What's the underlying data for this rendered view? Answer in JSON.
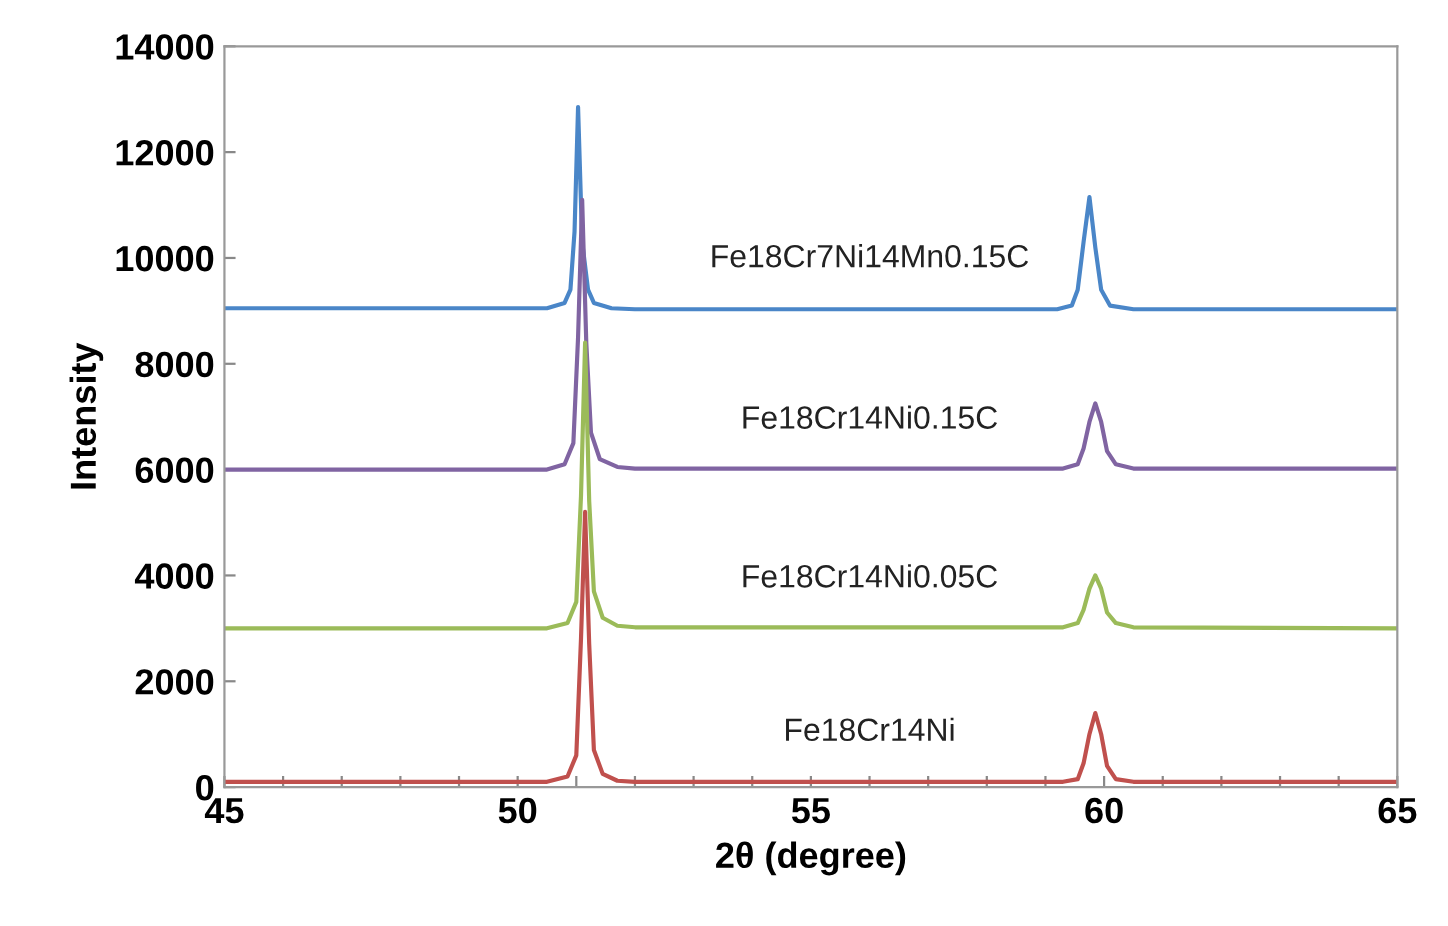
{
  "chart_data": {
    "type": "line",
    "xlabel": "2θ (degree)",
    "ylabel": "Intensity",
    "xlim": [
      45,
      65
    ],
    "ylim": [
      0,
      14000
    ],
    "xticks": [
      45,
      {
        "value": 46,
        "label": null
      },
      {
        "value": 47,
        "label": null
      },
      {
        "value": 48,
        "label": null
      },
      {
        "value": 49,
        "label": null
      },
      50,
      {
        "value": 51,
        "label": null
      },
      {
        "value": 52,
        "label": null
      },
      {
        "value": 53,
        "label": null
      },
      {
        "value": 54,
        "label": null
      },
      55,
      {
        "value": 56,
        "label": null
      },
      {
        "value": 57,
        "label": null
      },
      {
        "value": 58,
        "label": null
      },
      {
        "value": 59,
        "label": null
      },
      60,
      {
        "value": 61,
        "label": null
      },
      {
        "value": 62,
        "label": null
      },
      {
        "value": 63,
        "label": null
      },
      {
        "value": 64,
        "label": null
      },
      65
    ],
    "yticks": [
      0,
      2000,
      4000,
      6000,
      8000,
      10000,
      12000,
      14000
    ],
    "grid": false,
    "legend": false,
    "marker": "none",
    "line_style": "solid",
    "series": [
      {
        "name": "Fe18Cr7Ni14Mn0.15C",
        "color": "#4a86c8",
        "x": [
          45,
          50.5,
          50.8,
          50.9,
          50.97,
          51.03,
          51.1,
          51.2,
          51.3,
          51.6,
          52,
          59.2,
          59.45,
          59.55,
          59.65,
          59.75,
          59.85,
          59.95,
          60.1,
          60.5,
          65
        ],
        "values": [
          9050,
          9050,
          9150,
          9400,
          10500,
          12850,
          10300,
          9400,
          9150,
          9050,
          9030,
          9030,
          9100,
          9400,
          10300,
          11150,
          10200,
          9400,
          9100,
          9030,
          9030
        ]
      },
      {
        "name": "Fe18Cr14Ni0.15C",
        "color": "#8064a2",
        "x": [
          45,
          50.5,
          50.8,
          50.95,
          51.03,
          51.1,
          51.17,
          51.25,
          51.4,
          51.7,
          52,
          59.3,
          59.55,
          59.65,
          59.75,
          59.85,
          59.95,
          60.05,
          60.2,
          60.5,
          65
        ],
        "values": [
          6000,
          6000,
          6100,
          6500,
          8500,
          11100,
          8400,
          6700,
          6200,
          6050,
          6020,
          6020,
          6100,
          6400,
          6900,
          7250,
          6900,
          6350,
          6100,
          6020,
          6020
        ]
      },
      {
        "name": "Fe18Cr14Ni0.05C",
        "color": "#9bbb59",
        "x": [
          45,
          50.5,
          50.85,
          51.0,
          51.08,
          51.15,
          51.22,
          51.3,
          51.45,
          51.7,
          52,
          59.3,
          59.55,
          59.65,
          59.75,
          59.85,
          59.95,
          60.05,
          60.2,
          60.5,
          65
        ],
        "values": [
          3000,
          3000,
          3100,
          3500,
          5500,
          8400,
          5400,
          3700,
          3200,
          3050,
          3020,
          3020,
          3100,
          3350,
          3750,
          4000,
          3750,
          3300,
          3100,
          3020,
          3000
        ]
      },
      {
        "name": "Fe18Cr14Ni",
        "color": "#c0504d",
        "x": [
          45,
          50.5,
          50.85,
          51.0,
          51.08,
          51.15,
          51.22,
          51.3,
          51.45,
          51.7,
          52,
          59.3,
          59.55,
          59.65,
          59.75,
          59.85,
          59.95,
          60.05,
          60.2,
          60.5,
          65
        ],
        "values": [
          100,
          100,
          200,
          600,
          2800,
          5200,
          2700,
          700,
          250,
          120,
          100,
          100,
          150,
          450,
          1000,
          1400,
          1000,
          400,
          150,
          100,
          100
        ]
      }
    ]
  }
}
